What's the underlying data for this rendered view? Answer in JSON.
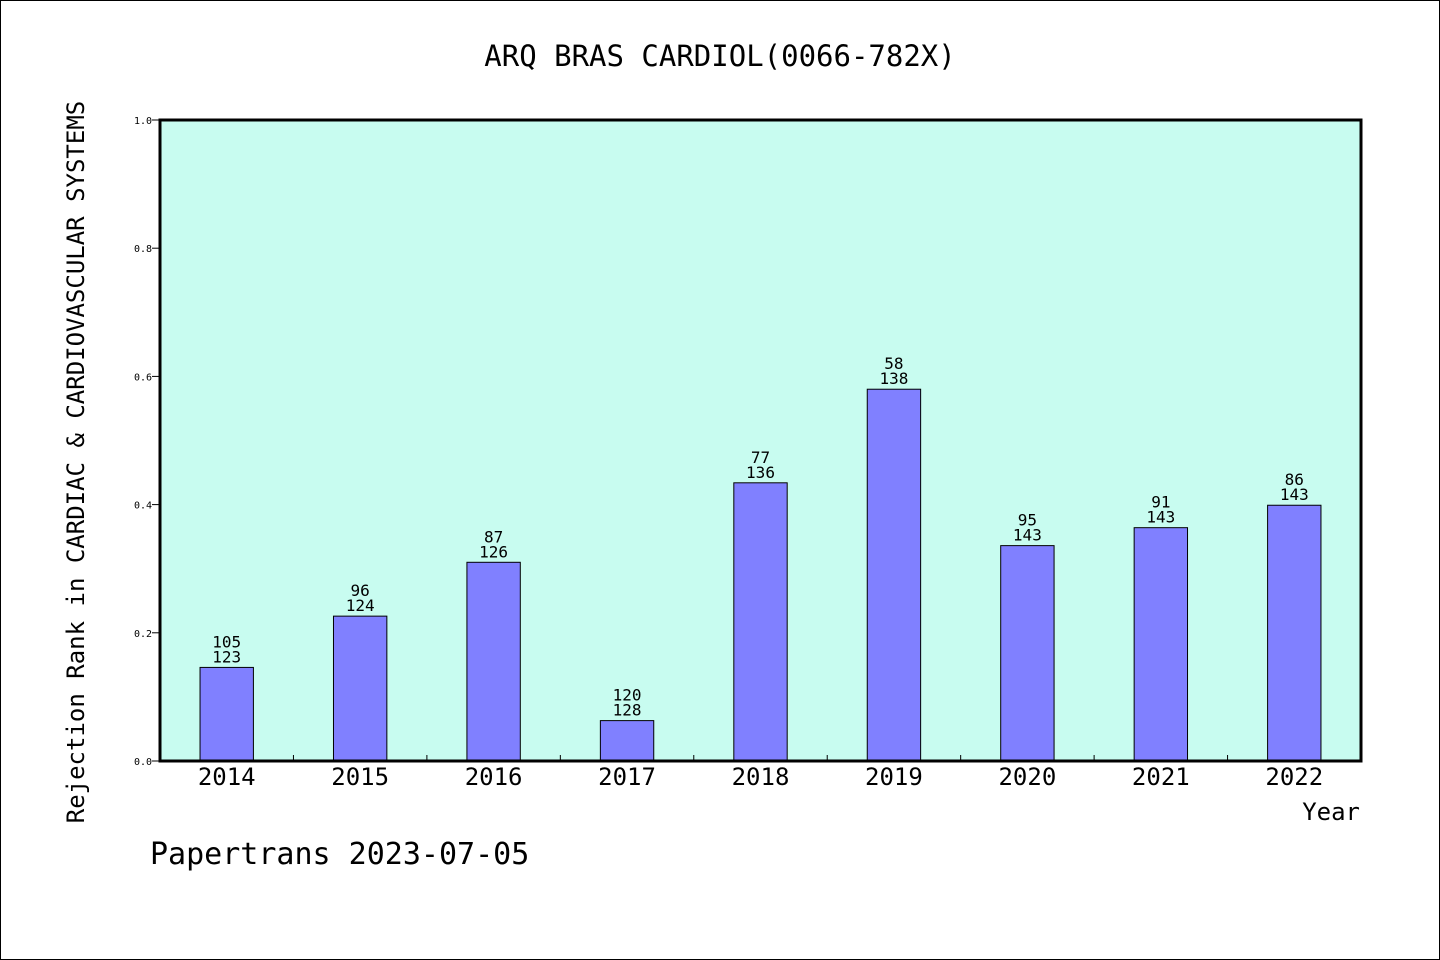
{
  "chart_data": {
    "type": "bar",
    "title": "ARQ BRAS CARDIOL(0066-782X)",
    "xlabel": "Year",
    "ylabel": "Rejection Rank in CARDIAC & CARDIOVASCULAR SYSTEMS",
    "ylim": [
      0.0,
      1.0
    ],
    "yticks": [
      "0.0",
      "0.2",
      "0.4",
      "0.6",
      "0.8",
      "1.0"
    ],
    "categories": [
      "2014",
      "2015",
      "2016",
      "2017",
      "2018",
      "2019",
      "2020",
      "2021",
      "2022"
    ],
    "values": [
      0.146,
      0.226,
      0.31,
      0.063,
      0.434,
      0.58,
      0.336,
      0.364,
      0.399
    ],
    "rank_labels": [
      "105",
      "96",
      "87",
      "120",
      "77",
      "58",
      "95",
      "91",
      "86"
    ],
    "total_labels": [
      "123",
      "124",
      "126",
      "128",
      "136",
      "138",
      "143",
      "143",
      "143"
    ],
    "grid": false,
    "colors": {
      "plot_background": "#c8fcf0",
      "bar_fill": "#8080ff",
      "bar_stroke": "#000000"
    }
  },
  "footer": {
    "credit": "Papertrans 2023-07-05"
  }
}
